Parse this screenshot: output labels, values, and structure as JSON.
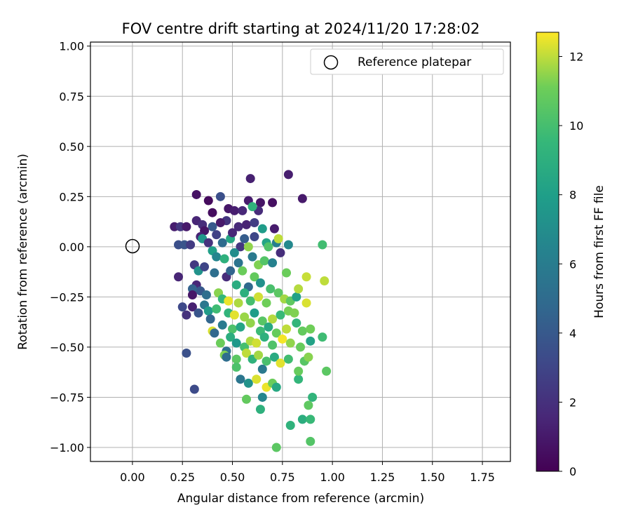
{
  "chart_data": {
    "type": "scatter",
    "title": "FOV centre drift starting at 2024/11/20 17:28:02",
    "xlabel": "Angular distance from reference (arcmin)",
    "ylabel": "Rotation from reference (arcmin)",
    "xlim": [
      -0.21,
      1.89
    ],
    "ylim": [
      -1.07,
      1.02
    ],
    "x_ticks": [
      "0.00",
      "0.25",
      "0.50",
      "0.75",
      "1.00",
      "1.25",
      "1.50",
      "1.75"
    ],
    "y_ticks": [
      "−1.00",
      "−0.75",
      "−0.50",
      "−0.25",
      "0.00",
      "0.25",
      "0.50",
      "0.75",
      "1.00"
    ],
    "grid": true,
    "legend": {
      "position": "top-right",
      "entries": [
        {
          "label": "Reference platepar",
          "marker": "hollow circle"
        }
      ]
    },
    "reference_point": {
      "x": 0.0,
      "y": 0.0
    },
    "colorbar": {
      "label": "Hours from first FF file",
      "min": 0,
      "max": 12.7,
      "ticks": [
        "0",
        "2",
        "4",
        "6",
        "8",
        "10",
        "12"
      ],
      "colormap": "viridis"
    },
    "points": [
      {
        "x": 0.4,
        "y": 0.17,
        "h": 0.5
      },
      {
        "x": 0.32,
        "y": 0.26,
        "h": 0.7
      },
      {
        "x": 0.38,
        "y": 0.23,
        "h": 0.4
      },
      {
        "x": 0.48,
        "y": 0.19,
        "h": 0.9
      },
      {
        "x": 0.51,
        "y": 0.18,
        "h": 1.2
      },
      {
        "x": 0.58,
        "y": 0.23,
        "h": 1.1
      },
      {
        "x": 0.64,
        "y": 0.22,
        "h": 0.8
      },
      {
        "x": 0.7,
        "y": 0.22,
        "h": 0.6
      },
      {
        "x": 0.85,
        "y": 0.24,
        "h": 1.0
      },
      {
        "x": 0.59,
        "y": 0.34,
        "h": 1.3
      },
      {
        "x": 0.78,
        "y": 0.36,
        "h": 1.2
      },
      {
        "x": 0.44,
        "y": 0.25,
        "h": 3.5
      },
      {
        "x": 0.55,
        "y": 0.18,
        "h": 1.6
      },
      {
        "x": 0.63,
        "y": 0.18,
        "h": 1.8
      },
      {
        "x": 0.6,
        "y": 0.2,
        "h": 9.2
      },
      {
        "x": 0.21,
        "y": 0.1,
        "h": 1.2
      },
      {
        "x": 0.24,
        "y": 0.1,
        "h": 2.3
      },
      {
        "x": 0.27,
        "y": 0.1,
        "h": 1.0
      },
      {
        "x": 0.32,
        "y": 0.13,
        "h": 1.5
      },
      {
        "x": 0.35,
        "y": 0.11,
        "h": 1.9
      },
      {
        "x": 0.4,
        "y": 0.1,
        "h": 4.0
      },
      {
        "x": 0.47,
        "y": 0.13,
        "h": 2.2
      },
      {
        "x": 0.53,
        "y": 0.1,
        "h": 1.7
      },
      {
        "x": 0.57,
        "y": 0.11,
        "h": 1.4
      },
      {
        "x": 0.61,
        "y": 0.12,
        "h": 2.6
      },
      {
        "x": 0.65,
        "y": 0.09,
        "h": 7.8
      },
      {
        "x": 0.71,
        "y": 0.09,
        "h": 1.1
      },
      {
        "x": 0.44,
        "y": 0.12,
        "h": 1.0
      },
      {
        "x": 0.36,
        "y": 0.08,
        "h": 0.8
      },
      {
        "x": 0.34,
        "y": 0.05,
        "h": 1.4
      },
      {
        "x": 0.23,
        "y": 0.01,
        "h": 3.5
      },
      {
        "x": 0.26,
        "y": 0.01,
        "h": 3.8
      },
      {
        "x": 0.29,
        "y": 0.01,
        "h": 2.5
      },
      {
        "x": 0.35,
        "y": 0.04,
        "h": 7.5
      },
      {
        "x": 0.38,
        "y": 0.02,
        "h": 2.1
      },
      {
        "x": 0.42,
        "y": 0.06,
        "h": 2.8
      },
      {
        "x": 0.45,
        "y": 0.02,
        "h": 5.0
      },
      {
        "x": 0.49,
        "y": 0.04,
        "h": 8.5
      },
      {
        "x": 0.5,
        "y": 0.07,
        "h": 1.6
      },
      {
        "x": 0.54,
        "y": 0.0,
        "h": 2.3
      },
      {
        "x": 0.58,
        "y": 0.0,
        "h": 11.5
      },
      {
        "x": 0.56,
        "y": 0.04,
        "h": 4.2
      },
      {
        "x": 0.61,
        "y": 0.05,
        "h": 3.1
      },
      {
        "x": 0.67,
        "y": 0.02,
        "h": 8.3
      },
      {
        "x": 0.68,
        "y": 0.0,
        "h": 10.3
      },
      {
        "x": 0.72,
        "y": 0.02,
        "h": 6.1
      },
      {
        "x": 0.78,
        "y": 0.01,
        "h": 6.7
      },
      {
        "x": 0.73,
        "y": 0.04,
        "h": 12.0
      },
      {
        "x": 0.74,
        "y": -0.03,
        "h": 1.9
      },
      {
        "x": 0.4,
        "y": -0.02,
        "h": 8.0
      },
      {
        "x": 0.42,
        "y": -0.05,
        "h": 6.5
      },
      {
        "x": 0.46,
        "y": -0.06,
        "h": 9.1
      },
      {
        "x": 0.51,
        "y": -0.03,
        "h": 7.0
      },
      {
        "x": 0.53,
        "y": -0.08,
        "h": 5.5
      },
      {
        "x": 0.55,
        "y": -0.12,
        "h": 11.0
      },
      {
        "x": 0.6,
        "y": -0.05,
        "h": 5.8
      },
      {
        "x": 0.63,
        "y": -0.09,
        "h": 11.3
      },
      {
        "x": 0.66,
        "y": -0.07,
        "h": 10.4
      },
      {
        "x": 0.7,
        "y": -0.08,
        "h": 6.3
      },
      {
        "x": 0.31,
        "y": -0.09,
        "h": 2.4
      },
      {
        "x": 0.33,
        "y": -0.12,
        "h": 7.3
      },
      {
        "x": 0.36,
        "y": -0.1,
        "h": 3.0
      },
      {
        "x": 0.41,
        "y": -0.13,
        "h": 5.2
      },
      {
        "x": 0.47,
        "y": -0.15,
        "h": 1.8
      },
      {
        "x": 0.49,
        "y": -0.12,
        "h": 4.6
      },
      {
        "x": 0.52,
        "y": -0.19,
        "h": 8.8
      },
      {
        "x": 0.58,
        "y": -0.2,
        "h": 4.9
      },
      {
        "x": 0.61,
        "y": -0.15,
        "h": 10.8
      },
      {
        "x": 0.64,
        "y": -0.18,
        "h": 7.2
      },
      {
        "x": 0.69,
        "y": -0.21,
        "h": 10.1
      },
      {
        "x": 0.77,
        "y": -0.13,
        "h": 11.0
      },
      {
        "x": 0.87,
        "y": -0.15,
        "h": 12.1
      },
      {
        "x": 0.96,
        "y": -0.17,
        "h": 12.0
      },
      {
        "x": 0.95,
        "y": 0.01,
        "h": 9.9
      },
      {
        "x": 0.23,
        "y": -0.15,
        "h": 1.5
      },
      {
        "x": 0.32,
        "y": -0.19,
        "h": 1.6
      },
      {
        "x": 0.34,
        "y": -0.22,
        "h": 4.0
      },
      {
        "x": 0.3,
        "y": -0.21,
        "h": 4.5
      },
      {
        "x": 0.37,
        "y": -0.24,
        "h": 5.1
      },
      {
        "x": 0.43,
        "y": -0.23,
        "h": 11.4
      },
      {
        "x": 0.45,
        "y": -0.26,
        "h": 9.5
      },
      {
        "x": 0.48,
        "y": -0.27,
        "h": 12.5
      },
      {
        "x": 0.53,
        "y": -0.28,
        "h": 11.8
      },
      {
        "x": 0.56,
        "y": -0.23,
        "h": 9.0
      },
      {
        "x": 0.59,
        "y": -0.27,
        "h": 10.0
      },
      {
        "x": 0.63,
        "y": -0.25,
        "h": 12.2
      },
      {
        "x": 0.67,
        "y": -0.28,
        "h": 11.1
      },
      {
        "x": 0.73,
        "y": -0.23,
        "h": 10.6
      },
      {
        "x": 0.76,
        "y": -0.26,
        "h": 11.7
      },
      {
        "x": 0.79,
        "y": -0.27,
        "h": 10.7
      },
      {
        "x": 0.82,
        "y": -0.25,
        "h": 8.1
      },
      {
        "x": 0.87,
        "y": -0.28,
        "h": 12.3
      },
      {
        "x": 0.83,
        "y": -0.21,
        "h": 11.9
      },
      {
        "x": 0.3,
        "y": -0.24,
        "h": 0.9
      },
      {
        "x": 0.25,
        "y": -0.3,
        "h": 3.2
      },
      {
        "x": 0.27,
        "y": -0.34,
        "h": 2.0
      },
      {
        "x": 0.3,
        "y": -0.3,
        "h": 1.3
      },
      {
        "x": 0.33,
        "y": -0.33,
        "h": 3.8
      },
      {
        "x": 0.36,
        "y": -0.29,
        "h": 5.7
      },
      {
        "x": 0.38,
        "y": -0.32,
        "h": 7.8
      },
      {
        "x": 0.42,
        "y": -0.31,
        "h": 9.8
      },
      {
        "x": 0.48,
        "y": -0.33,
        "h": 9.3
      },
      {
        "x": 0.51,
        "y": -0.34,
        "h": 12.4
      },
      {
        "x": 0.56,
        "y": -0.35,
        "h": 11.6
      },
      {
        "x": 0.61,
        "y": -0.33,
        "h": 7.9
      },
      {
        "x": 0.65,
        "y": -0.37,
        "h": 10.5
      },
      {
        "x": 0.7,
        "y": -0.36,
        "h": 11.9
      },
      {
        "x": 0.74,
        "y": -0.34,
        "h": 9.6
      },
      {
        "x": 0.78,
        "y": -0.32,
        "h": 11.2
      },
      {
        "x": 0.81,
        "y": -0.33,
        "h": 11.3
      },
      {
        "x": 0.39,
        "y": -0.36,
        "h": 4.7
      },
      {
        "x": 0.45,
        "y": -0.39,
        "h": 5.9
      },
      {
        "x": 0.5,
        "y": -0.41,
        "h": 10.2
      },
      {
        "x": 0.54,
        "y": -0.4,
        "h": 8.4
      },
      {
        "x": 0.59,
        "y": -0.38,
        "h": 11.5
      },
      {
        "x": 0.64,
        "y": -0.42,
        "h": 9.7
      },
      {
        "x": 0.68,
        "y": -0.4,
        "h": 8.6
      },
      {
        "x": 0.72,
        "y": -0.43,
        "h": 10.9
      },
      {
        "x": 0.77,
        "y": -0.41,
        "h": 12.0
      },
      {
        "x": 0.82,
        "y": -0.38,
        "h": 9.4
      },
      {
        "x": 0.85,
        "y": -0.42,
        "h": 10.8
      },
      {
        "x": 0.89,
        "y": -0.41,
        "h": 11.1
      },
      {
        "x": 0.4,
        "y": -0.42,
        "h": 12.3
      },
      {
        "x": 0.41,
        "y": -0.43,
        "h": 4.8
      },
      {
        "x": 0.44,
        "y": -0.48,
        "h": 11.0
      },
      {
        "x": 0.47,
        "y": -0.52,
        "h": 5.3
      },
      {
        "x": 0.49,
        "y": -0.45,
        "h": 8.9
      },
      {
        "x": 0.52,
        "y": -0.48,
        "h": 7.6
      },
      {
        "x": 0.56,
        "y": -0.5,
        "h": 10.0
      },
      {
        "x": 0.59,
        "y": -0.47,
        "h": 11.8
      },
      {
        "x": 0.62,
        "y": -0.48,
        "h": 12.2
      },
      {
        "x": 0.66,
        "y": -0.45,
        "h": 9.1
      },
      {
        "x": 0.7,
        "y": -0.49,
        "h": 10.3
      },
      {
        "x": 0.75,
        "y": -0.46,
        "h": 12.6
      },
      {
        "x": 0.79,
        "y": -0.48,
        "h": 11.5
      },
      {
        "x": 0.84,
        "y": -0.5,
        "h": 10.9
      },
      {
        "x": 0.89,
        "y": -0.47,
        "h": 8.2
      },
      {
        "x": 0.95,
        "y": -0.45,
        "h": 9.8
      },
      {
        "x": 0.46,
        "y": -0.54,
        "h": 11.3
      },
      {
        "x": 0.47,
        "y": -0.55,
        "h": 5.1
      },
      {
        "x": 0.52,
        "y": -0.56,
        "h": 10.6
      },
      {
        "x": 0.57,
        "y": -0.53,
        "h": 12.0
      },
      {
        "x": 0.6,
        "y": -0.56,
        "h": 9.2
      },
      {
        "x": 0.63,
        "y": -0.54,
        "h": 11.7
      },
      {
        "x": 0.67,
        "y": -0.57,
        "h": 10.1
      },
      {
        "x": 0.71,
        "y": -0.55,
        "h": 8.7
      },
      {
        "x": 0.74,
        "y": -0.58,
        "h": 12.4
      },
      {
        "x": 0.78,
        "y": -0.56,
        "h": 9.9
      },
      {
        "x": 0.86,
        "y": -0.57,
        "h": 10.5
      },
      {
        "x": 0.88,
        "y": -0.55,
        "h": 11.4
      },
      {
        "x": 0.27,
        "y": -0.53,
        "h": 3.6
      },
      {
        "x": 0.52,
        "y": -0.6,
        "h": 10.2
      },
      {
        "x": 0.54,
        "y": -0.66,
        "h": 5.6
      },
      {
        "x": 0.58,
        "y": -0.68,
        "h": 7.3
      },
      {
        "x": 0.62,
        "y": -0.66,
        "h": 12.3
      },
      {
        "x": 0.65,
        "y": -0.61,
        "h": 5.8
      },
      {
        "x": 0.67,
        "y": -0.7,
        "h": 12.5
      },
      {
        "x": 0.7,
        "y": -0.68,
        "h": 11.0
      },
      {
        "x": 0.72,
        "y": -0.7,
        "h": 8.6
      },
      {
        "x": 0.83,
        "y": -0.66,
        "h": 9.4
      },
      {
        "x": 0.83,
        "y": -0.62,
        "h": 10.9
      },
      {
        "x": 0.97,
        "y": -0.62,
        "h": 10.6
      },
      {
        "x": 0.31,
        "y": -0.71,
        "h": 3.3
      },
      {
        "x": 0.57,
        "y": -0.76,
        "h": 10.8
      },
      {
        "x": 0.65,
        "y": -0.75,
        "h": 6.6
      },
      {
        "x": 0.64,
        "y": -0.81,
        "h": 9.1
      },
      {
        "x": 0.79,
        "y": -0.89,
        "h": 9.2
      },
      {
        "x": 0.85,
        "y": -0.86,
        "h": 8.9
      },
      {
        "x": 0.89,
        "y": -0.86,
        "h": 9.6
      },
      {
        "x": 0.88,
        "y": -0.79,
        "h": 10.7
      },
      {
        "x": 0.9,
        "y": -0.75,
        "h": 9.3
      },
      {
        "x": 0.89,
        "y": -0.97,
        "h": 10.4
      },
      {
        "x": 0.72,
        "y": -1.0,
        "h": 10.6
      }
    ]
  }
}
